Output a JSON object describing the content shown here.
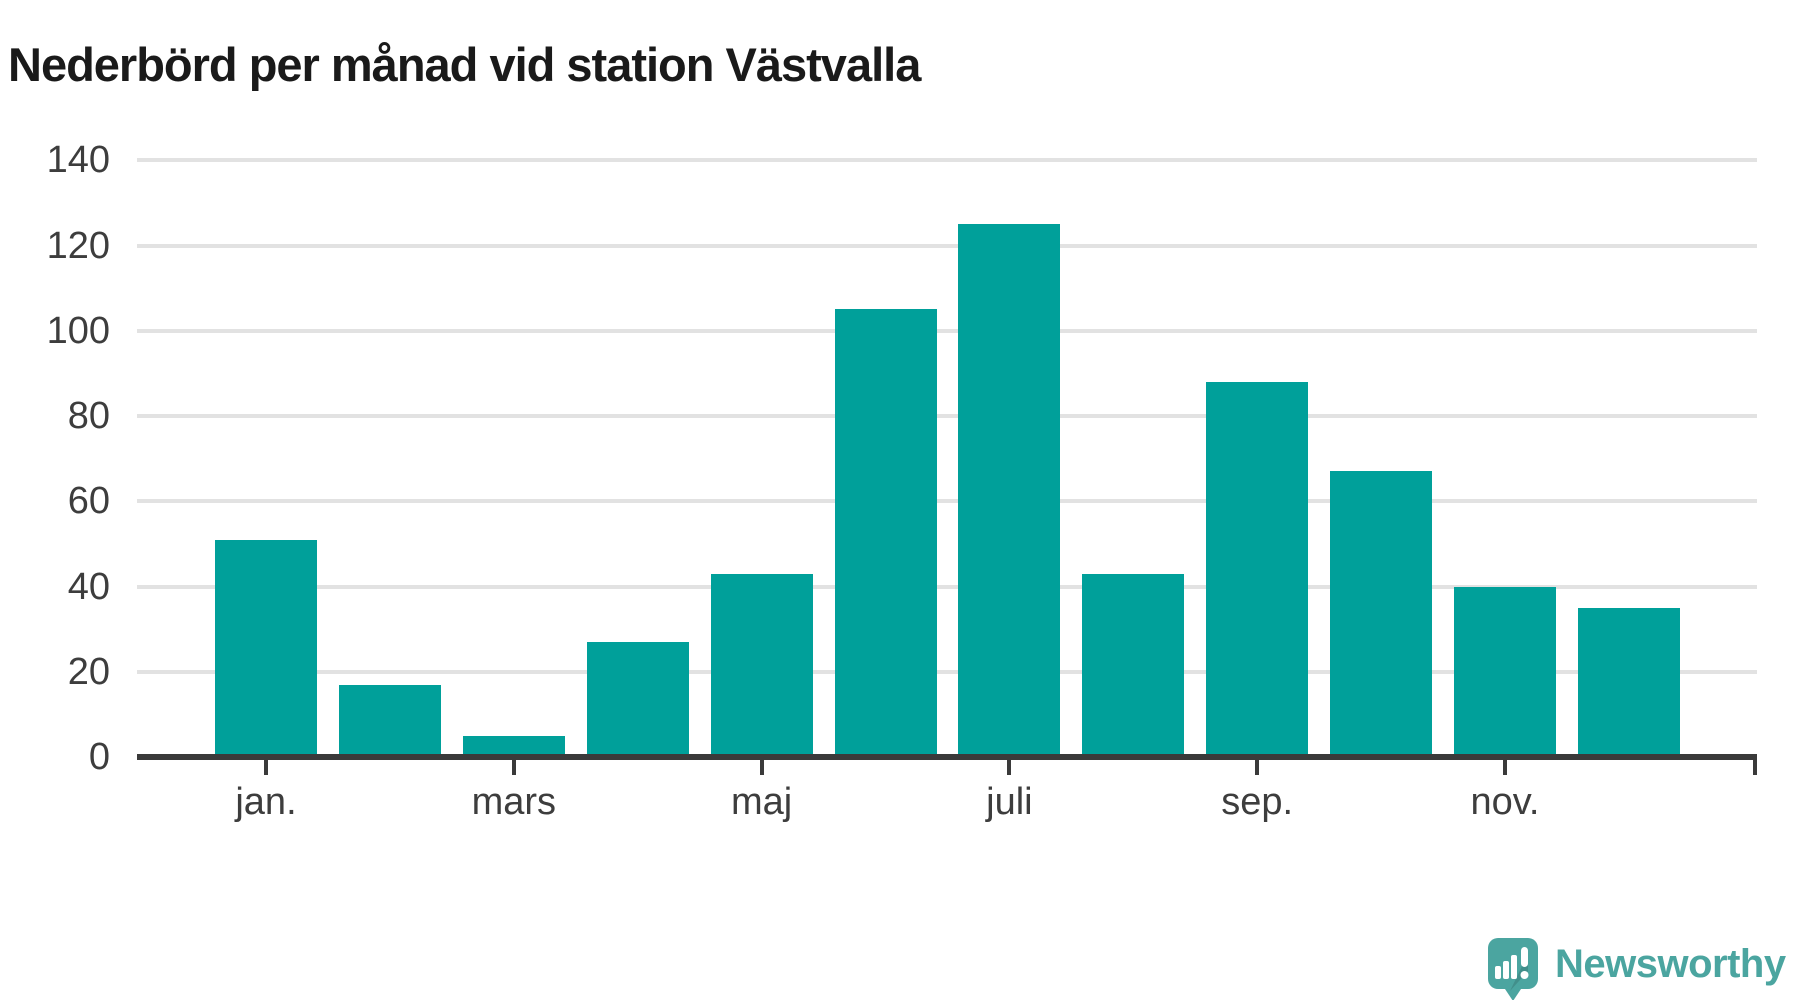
{
  "title": "Nederbörd per månad vid station Västvalla",
  "chart_data": {
    "type": "bar",
    "title": "Nederbörd per månad vid station Västvalla",
    "values": [
      51,
      17,
      5,
      27,
      43,
      105,
      125,
      43,
      88,
      67,
      40,
      35
    ],
    "n_bars": 12,
    "x_ticks": [
      {
        "label": "jan.",
        "bar_index": 0
      },
      {
        "label": "mars",
        "bar_index": 2
      },
      {
        "label": "maj",
        "bar_index": 4
      },
      {
        "label": "juli",
        "bar_index": 6
      },
      {
        "label": "sep.",
        "bar_index": 8
      },
      {
        "label": "nov.",
        "bar_index": 10
      }
    ],
    "y_ticks": [
      0,
      20,
      40,
      60,
      80,
      100,
      120,
      140
    ],
    "ylim": [
      0,
      140
    ],
    "grid": "horizontal",
    "legend": "none",
    "bar_color": "#00A09A",
    "gridline_color": "#E2E2E2",
    "axis_color": "#3A3A3A",
    "label_color": "#3D3D3D",
    "title_color": "#1A1A1A"
  },
  "branding": {
    "logo_text": "Newsworthy",
    "logo_color": "#4BA5A0",
    "logo_icon": "speech-bubble-bar-chart-icon"
  }
}
